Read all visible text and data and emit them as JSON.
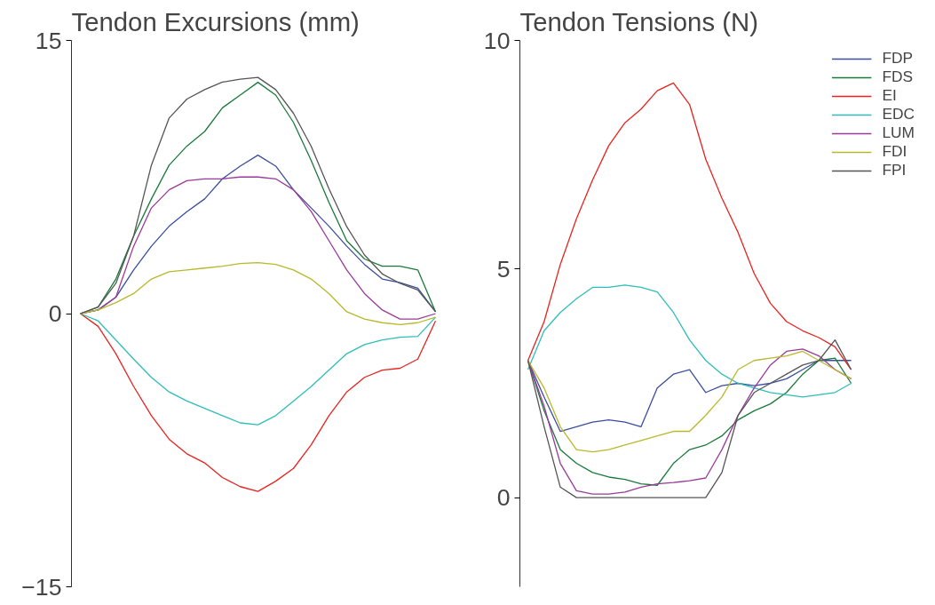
{
  "chart_data": [
    {
      "type": "line",
      "title": "Tendon Excursions (mm)",
      "categories": [
        null,
        null,
        null,
        null,
        null,
        null,
        null,
        null,
        null,
        null,
        null,
        null,
        null,
        null,
        null,
        null,
        null,
        null,
        null,
        null,
        null
      ],
      "ylim": [
        -15,
        15
      ],
      "yticks": [
        {
          "value": -15,
          "label": "−15"
        },
        0,
        15
      ],
      "tick_labels": "y",
      "grid": false,
      "legend": false,
      "series": [
        {
          "color": "#3a4da0",
          "values": [
            0,
            0.2,
            0.9,
            2.4,
            3.7,
            4.8,
            5.6,
            6.3,
            7.4,
            8.1,
            8.7,
            8.1,
            6.8,
            5.8,
            4.8,
            3.7,
            2.7,
            1.9,
            1.7,
            1.4,
            0.1
          ]
        },
        {
          "color": "#1a7a3a",
          "values": [
            0,
            0.36,
            1.9,
            4.26,
            6.3,
            8.15,
            9.2,
            10,
            11.3,
            12,
            12.7,
            12,
            10.5,
            8.4,
            6.1,
            4,
            3,
            2.6,
            2.6,
            2.4,
            0.1
          ]
        },
        {
          "color": "#e8231f",
          "values": [
            0,
            -0.7,
            -2.2,
            -4,
            -5.6,
            -6.9,
            -7.7,
            -8.2,
            -9,
            -9.5,
            -9.76,
            -9.2,
            -8.5,
            -7.2,
            -5.6,
            -4.3,
            -3.5,
            -3.1,
            -3,
            -2.5,
            -0.4
          ]
        },
        {
          "color": "#2ebdb8",
          "values": [
            0,
            -0.4,
            -1.45,
            -2.5,
            -3.5,
            -4.3,
            -4.8,
            -5.2,
            -5.6,
            -6,
            -6.1,
            -5.6,
            -4.8,
            -4,
            -3.1,
            -2.2,
            -1.7,
            -1.45,
            -1.3,
            -1.25,
            -0.2
          ]
        },
        {
          "color": "#9a3a9a",
          "values": [
            0,
            0.2,
            0.9,
            3.7,
            5.8,
            6.8,
            7.3,
            7.4,
            7.4,
            7.5,
            7.5,
            7.4,
            6.8,
            5.6,
            4,
            2.4,
            1.1,
            0.2,
            -0.3,
            -0.3,
            0
          ]
        },
        {
          "color": "#b8b82a",
          "values": [
            0,
            0.2,
            0.6,
            1.1,
            1.9,
            2.3,
            2.4,
            2.5,
            2.6,
            2.75,
            2.8,
            2.7,
            2.4,
            1.9,
            1.1,
            0.1,
            -0.3,
            -0.5,
            -0.6,
            -0.5,
            -0.2
          ]
        },
        {
          "color": "#555555",
          "values": [
            0,
            0.36,
            1.66,
            4.26,
            8.15,
            10.74,
            11.78,
            12.3,
            12.71,
            12.87,
            12.97,
            12.3,
            11,
            9.18,
            6.85,
            4.77,
            3.22,
            2.18,
            1.66,
            1.3,
            0.1
          ]
        }
      ]
    },
    {
      "type": "line",
      "title": "Tendon Tensions (N)",
      "categories": [
        null,
        null,
        null,
        null,
        null,
        null,
        null,
        null,
        null,
        null,
        null,
        null,
        null,
        null,
        null,
        null,
        null,
        null,
        null,
        null,
        null
      ],
      "ylim": [
        -1.95,
        10
      ],
      "yticks": [
        0,
        5,
        10
      ],
      "tick_labels": "y",
      "grid": false,
      "legend": "top right",
      "series": [
        {
          "name": "FDP",
          "color": "#3a4da0",
          "values": [
            3,
            2.2,
            1.45,
            1.55,
            1.65,
            1.7,
            1.65,
            1.55,
            2.4,
            2.7,
            2.8,
            2.3,
            2.45,
            2.5,
            2.45,
            2.5,
            2.6,
            2.8,
            3,
            3,
            3
          ]
        },
        {
          "name": "FDS",
          "color": "#1a7a3a",
          "values": [
            3,
            1.9,
            1.05,
            0.75,
            0.55,
            0.45,
            0.4,
            0.3,
            0.27,
            0.75,
            1.05,
            1.15,
            1.35,
            1.7,
            1.9,
            2.05,
            2.3,
            2.7,
            3,
            3.05,
            2.5
          ]
        },
        {
          "name": "EI",
          "color": "#e8231f",
          "values": [
            3,
            3.85,
            5.1,
            6.1,
            6.95,
            7.7,
            8.2,
            8.5,
            8.9,
            9.07,
            8.6,
            7.4,
            6.55,
            5.8,
            4.9,
            4.25,
            3.85,
            3.65,
            3.5,
            3.3,
            2.8
          ]
        },
        {
          "name": "EDC",
          "color": "#2ebdb8",
          "values": [
            2.8,
            3.65,
            4.05,
            4.35,
            4.6,
            4.6,
            4.65,
            4.6,
            4.5,
            4.05,
            3.45,
            3,
            2.7,
            2.5,
            2.4,
            2.3,
            2.25,
            2.2,
            2.25,
            2.3,
            2.5
          ]
        },
        {
          "name": "LUM",
          "color": "#9a3a9a",
          "values": [
            3,
            2,
            0.75,
            0.15,
            0.08,
            0.08,
            0.12,
            0.23,
            0.3,
            0.33,
            0.37,
            0.43,
            1.05,
            1.8,
            2.4,
            2.9,
            3.2,
            3.25,
            3.1,
            2.8,
            2.6
          ]
        },
        {
          "name": "FDI",
          "color": "#b8b82a",
          "values": [
            3,
            2.4,
            1.55,
            1.05,
            1,
            1.05,
            1.15,
            1.25,
            1.35,
            1.45,
            1.45,
            1.8,
            2.2,
            2.8,
            3,
            3.05,
            3.1,
            3.2,
            3,
            2.8,
            2.6
          ]
        },
        {
          "name": "FPI",
          "color": "#555555",
          "values": [
            3,
            1.55,
            0.23,
            0,
            0,
            0,
            0,
            0,
            0,
            0,
            0,
            0,
            0.55,
            1.8,
            2.3,
            2.5,
            2.7,
            2.9,
            3,
            3.45,
            2.8
          ]
        }
      ]
    }
  ]
}
